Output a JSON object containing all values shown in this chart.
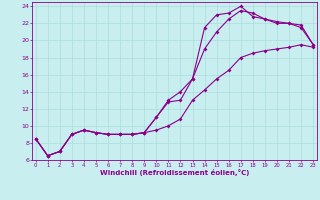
{
  "xlabel": "Windchill (Refroidissement éolien,°C)",
  "bg_color": "#c8eef0",
  "line_color": "#8b008b",
  "grid_color": "#aadddd",
  "xmin": 0,
  "xmax": 23,
  "ymin": 6,
  "ymax": 24.5,
  "xticks": [
    0,
    1,
    2,
    3,
    4,
    5,
    6,
    7,
    8,
    9,
    10,
    11,
    12,
    13,
    14,
    15,
    16,
    17,
    18,
    19,
    20,
    21,
    22,
    23
  ],
  "yticks": [
    6,
    8,
    10,
    12,
    14,
    16,
    18,
    20,
    22,
    24
  ],
  "line1_x": [
    0,
    1,
    2,
    3,
    4,
    5,
    6,
    7,
    8,
    9,
    10,
    11,
    12,
    13,
    14,
    15,
    16,
    17,
    18,
    19,
    20,
    21,
    22,
    23
  ],
  "line1_y": [
    8.5,
    6.5,
    7.0,
    9.0,
    9.5,
    9.2,
    9.0,
    9.0,
    9.0,
    9.2,
    11.0,
    12.8,
    13.0,
    15.5,
    19.0,
    21.0,
    22.5,
    23.5,
    23.2,
    22.5,
    22.0,
    22.0,
    21.8,
    19.5
  ],
  "line2_x": [
    0,
    1,
    2,
    3,
    4,
    5,
    6,
    7,
    8,
    9,
    10,
    11,
    12,
    13,
    14,
    15,
    16,
    17,
    18,
    19,
    20,
    21,
    22,
    23
  ],
  "line2_y": [
    8.5,
    6.5,
    7.0,
    9.0,
    9.5,
    9.2,
    9.0,
    9.0,
    9.0,
    9.2,
    11.0,
    13.0,
    14.0,
    15.5,
    21.5,
    23.0,
    23.2,
    24.0,
    22.8,
    22.5,
    22.2,
    22.0,
    21.5,
    19.5
  ],
  "line3_x": [
    0,
    1,
    2,
    3,
    4,
    5,
    6,
    7,
    8,
    9,
    10,
    11,
    12,
    13,
    14,
    15,
    16,
    17,
    18,
    19,
    20,
    21,
    22,
    23
  ],
  "line3_y": [
    8.5,
    6.5,
    7.0,
    9.0,
    9.5,
    9.2,
    9.0,
    9.0,
    9.0,
    9.2,
    9.5,
    10.0,
    10.8,
    13.0,
    14.2,
    15.5,
    16.5,
    18.0,
    18.5,
    18.8,
    19.0,
    19.2,
    19.5,
    19.2
  ]
}
